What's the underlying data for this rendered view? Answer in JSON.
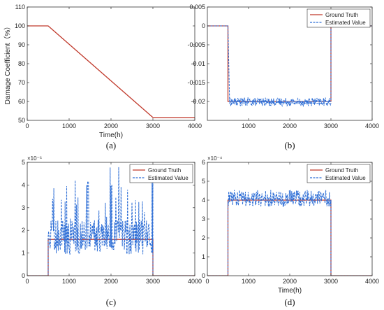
{
  "chart_data": [
    {
      "id": "a",
      "type": "line",
      "panel_label": "(a)",
      "xlabel": "Time(h)",
      "ylabel": "Damage Coefficient（%）",
      "xlim": [
        0,
        4000
      ],
      "ylim": [
        50,
        110
      ],
      "xticks": [
        0,
        1000,
        2000,
        3000,
        4000
      ],
      "yticks": [
        50,
        60,
        70,
        80,
        90,
        100,
        110
      ],
      "tick_labels_x": [
        "0",
        "1000",
        "2000",
        "3000",
        "4000"
      ],
      "tick_labels_y": [
        "50",
        "60",
        "70",
        "80",
        "90",
        "100",
        "110"
      ],
      "series": [
        {
          "color": "#c0392b",
          "style": "solid",
          "x": [
            0,
            500,
            3000,
            4000
          ],
          "y": [
            100,
            100,
            51.5,
            51.5
          ]
        }
      ]
    },
    {
      "id": "b",
      "type": "line",
      "panel_label": "(b)",
      "xlabel": "",
      "ylabel": "",
      "xlim": [
        0,
        4000
      ],
      "ylim": [
        -0.025,
        0.005
      ],
      "xticks": [
        1000,
        2000,
        3000,
        4000
      ],
      "yticks": [
        -0.02,
        -0.015,
        -0.01,
        -0.005,
        0,
        0.005
      ],
      "tick_labels_x": [
        "1000",
        "2000",
        "3000",
        "4000"
      ],
      "tick_labels_y": [
        "-0.02",
        "-0.015",
        "-0.01",
        "-0.005",
        "0",
        "0.005"
      ],
      "legend": {
        "position": "top-right",
        "entries": [
          "Ground Truth",
          "Estimated Value"
        ]
      },
      "series": [
        {
          "name": "Ground Truth",
          "color": "#c0392b",
          "style": "solid",
          "x": [
            0,
            500,
            500,
            3000,
            3000,
            4000
          ],
          "y": [
            0,
            0,
            -0.02,
            -0.02,
            0,
            0
          ]
        },
        {
          "name": "Estimated Value",
          "color": "#2f6fd6",
          "style": "dashed",
          "x": [
            0,
            500,
            540,
            3000,
            3000,
            4000
          ],
          "y": [
            0,
            0,
            -0.02,
            -0.02,
            0,
            0
          ],
          "noise": {
            "x_range": [
              540,
              3000
            ],
            "center": -0.0201,
            "amplitude": 0.0011
          }
        }
      ]
    },
    {
      "id": "c",
      "type": "line",
      "panel_label": "(c)",
      "xlabel": "",
      "ylabel": "",
      "exponent": "×10⁻⁵",
      "xlim": [
        0,
        4000
      ],
      "ylim": [
        0,
        5
      ],
      "xticks": [
        0,
        1000,
        2000,
        3000,
        4000
      ],
      "yticks": [
        0,
        1,
        2,
        3,
        4,
        5
      ],
      "tick_labels_x": [
        "0",
        "1000",
        "2000",
        "3000",
        "4000"
      ],
      "tick_labels_y": [
        "0",
        "1",
        "2",
        "3",
        "4",
        "5"
      ],
      "legend": {
        "position": "top-right",
        "entries": [
          "Ground Truth",
          "Estimated Value"
        ]
      },
      "series": [
        {
          "name": "Ground Truth",
          "color": "#c0392b",
          "style": "solid",
          "x": [
            0,
            500,
            500,
            3000,
            3000,
            4000
          ],
          "y": [
            0,
            0,
            1.6,
            1.6,
            0,
            0
          ]
        },
        {
          "name": "Estimated Value",
          "color": "#2f6fd6",
          "style": "dashed",
          "x": [
            0,
            500,
            3000,
            3000,
            4000
          ],
          "y": [
            0,
            0,
            1.6,
            0,
            0
          ],
          "noise": {
            "x_range": [
              500,
              3000
            ],
            "center": 1.7,
            "amplitude": 1.3,
            "spike_max": 4.8
          }
        }
      ]
    },
    {
      "id": "d",
      "type": "line",
      "panel_label": "(d)",
      "xlabel": "Time(h)",
      "ylabel": "",
      "exponent": "×10⁻⁴",
      "xlim": [
        0,
        4000
      ],
      "ylim": [
        0,
        6
      ],
      "xticks": [
        0,
        1000,
        2000,
        3000,
        4000
      ],
      "yticks": [
        0,
        1,
        2,
        3,
        4,
        5,
        6
      ],
      "tick_labels_x": [
        "0",
        "1000",
        "2000",
        "3000",
        "4000"
      ],
      "tick_labels_y": [
        "0",
        "1",
        "2",
        "3",
        "4",
        "5",
        "6"
      ],
      "legend": {
        "position": "top-right",
        "entries": [
          "Ground Truth",
          "Estimated Value"
        ]
      },
      "series": [
        {
          "name": "Ground Truth",
          "color": "#c0392b",
          "style": "solid",
          "x": [
            0,
            500,
            500,
            3000,
            3000,
            4000
          ],
          "y": [
            0,
            0,
            4.0,
            4.0,
            0,
            0
          ]
        },
        {
          "name": "Estimated Value",
          "color": "#2f6fd6",
          "style": "dashed",
          "x": [
            0,
            500,
            3000,
            3000,
            4000
          ],
          "y": [
            0,
            0,
            4.0,
            0,
            0
          ],
          "noise": {
            "x_range": [
              500,
              3000
            ],
            "center": 4.1,
            "amplitude": 0.45
          }
        }
      ]
    }
  ]
}
